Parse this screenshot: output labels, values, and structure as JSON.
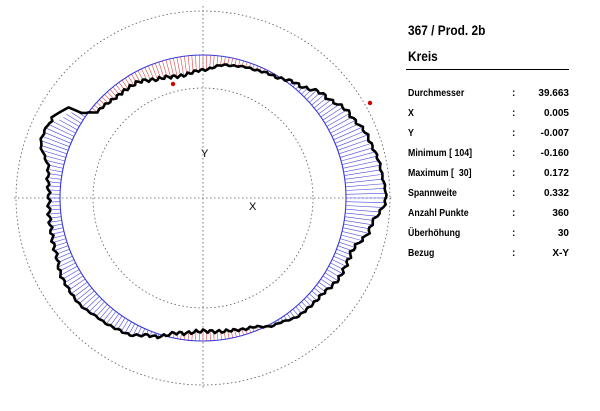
{
  "header": {
    "part": "367 / Prod. 2b",
    "method": "Kreis"
  },
  "axes": {
    "y_label": "Y",
    "x_label": "X"
  },
  "results": [
    {
      "label": "Durchmesser",
      "sep": ":",
      "value": "39.663"
    },
    {
      "label": "X",
      "sep": ":",
      "value": "0.005"
    },
    {
      "label": "Y",
      "sep": ":",
      "value": "-0.007"
    },
    {
      "label": "Minimum [ 104]",
      "sep": ":",
      "value": "-0.160"
    },
    {
      "label": "Maximum [  30]",
      "sep": ":",
      "value": "0.172"
    },
    {
      "label": "Spannweite",
      "sep": ":",
      "value": "0.332"
    },
    {
      "label": "Anzahl Punkte",
      "sep": ":",
      "value": "360"
    },
    {
      "label": "Überhöhung",
      "sep": ":",
      "value": "30"
    },
    {
      "label": "Bezug",
      "sep": ":",
      "value": "X-Y"
    }
  ],
  "colors": {
    "reference_circle": "#3a3ad8",
    "inside_deviation": "#4a4ae0",
    "outside_deviation": "#d84a4a",
    "profile": "#000000",
    "extrema": "#d00000",
    "guides": "#555555"
  }
}
